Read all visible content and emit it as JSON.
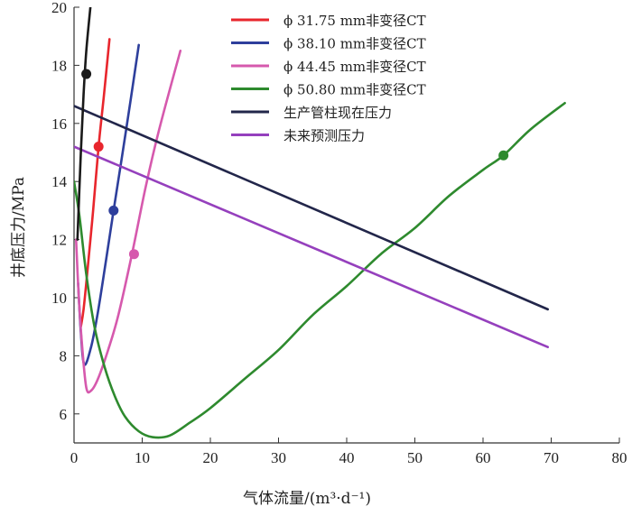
{
  "chart_data": {
    "type": "line",
    "title": "",
    "xlabel": "气体流量/(m³·d⁻¹)",
    "ylabel": "井底压力/MPa",
    "xlim": [
      0,
      80
    ],
    "ylim": [
      5,
      20
    ],
    "xticks": [
      "0",
      "10",
      "20",
      "30",
      "40",
      "50",
      "60",
      "70",
      "80"
    ],
    "yticks": [
      "6",
      "8",
      "10",
      "12",
      "14",
      "16",
      "18",
      "20"
    ],
    "legend_position": "top-center",
    "series": [
      {
        "name": "ϕ 31.75 mm非变径CT",
        "color": "#e8262d",
        "points": [
          [
            1.0,
            9.0
          ],
          [
            1.4,
            9.6
          ],
          [
            2.0,
            11.0
          ],
          [
            2.8,
            13.0
          ],
          [
            3.6,
            15.2
          ],
          [
            4.4,
            17.0
          ],
          [
            5.2,
            18.9
          ]
        ],
        "marker": [
          3.6,
          15.2
        ]
      },
      {
        "name": "ϕ 38.10 mm非变径CT",
        "color": "#2e3f9c",
        "points": [
          [
            0.6,
            10.5
          ],
          [
            1.0,
            8.8
          ],
          [
            1.5,
            7.7
          ],
          [
            2.5,
            8.3
          ],
          [
            3.5,
            9.5
          ],
          [
            4.7,
            11.3
          ],
          [
            5.8,
            13.0
          ],
          [
            7.0,
            14.8
          ],
          [
            8.3,
            16.8
          ],
          [
            9.5,
            18.7
          ]
        ],
        "marker": [
          5.8,
          13.0
        ]
      },
      {
        "name": "ϕ 44.45 mm非变径CT",
        "color": "#d659ad",
        "points": [
          [
            0.3,
            12.0
          ],
          [
            0.7,
            10.0
          ],
          [
            1.2,
            8.3
          ],
          [
            1.8,
            6.9
          ],
          [
            2.5,
            6.8
          ],
          [
            3.5,
            7.2
          ],
          [
            5.0,
            8.2
          ],
          [
            6.5,
            9.4
          ],
          [
            8.5,
            11.5
          ],
          [
            10.5,
            13.8
          ],
          [
            12.5,
            15.8
          ],
          [
            15.6,
            18.5
          ]
        ],
        "marker": [
          8.8,
          11.5
        ]
      },
      {
        "name": "ϕ 50.80 mm非变径CT",
        "color": "#2e8a2e",
        "points": [
          [
            0.0,
            14.0
          ],
          [
            0.8,
            12.8
          ],
          [
            1.8,
            10.8
          ],
          [
            3.0,
            9.0
          ],
          [
            4.5,
            7.6
          ],
          [
            6.0,
            6.6
          ],
          [
            7.5,
            5.9
          ],
          [
            9.5,
            5.4
          ],
          [
            11.5,
            5.2
          ],
          [
            14.0,
            5.25
          ],
          [
            17.0,
            5.7
          ],
          [
            20.0,
            6.2
          ],
          [
            25.0,
            7.2
          ],
          [
            30.0,
            8.2
          ],
          [
            35.0,
            9.4
          ],
          [
            40.0,
            10.4
          ],
          [
            45.0,
            11.5
          ],
          [
            50.0,
            12.4
          ],
          [
            55.0,
            13.5
          ],
          [
            60.0,
            14.4
          ],
          [
            63.0,
            14.9
          ],
          [
            67.0,
            15.8
          ],
          [
            72.0,
            16.7
          ]
        ],
        "marker": [
          63.0,
          14.9
        ]
      },
      {
        "name": "生产管柱现在压力",
        "color": "#22264a",
        "points": [
          [
            0.0,
            16.6
          ],
          [
            69.5,
            9.6
          ]
        ]
      },
      {
        "name": "未来预测压力",
        "color": "#9540bd",
        "points": [
          [
            0.0,
            15.2
          ],
          [
            69.5,
            8.3
          ]
        ]
      },
      {
        "name": "",
        "color": "#1a1a1a",
        "points": [
          [
            0.5,
            12.0
          ],
          [
            1.0,
            15.0
          ],
          [
            1.4,
            17.0
          ],
          [
            1.8,
            18.5
          ],
          [
            2.4,
            20.0
          ]
        ],
        "marker": [
          1.8,
          17.7
        ]
      }
    ]
  }
}
